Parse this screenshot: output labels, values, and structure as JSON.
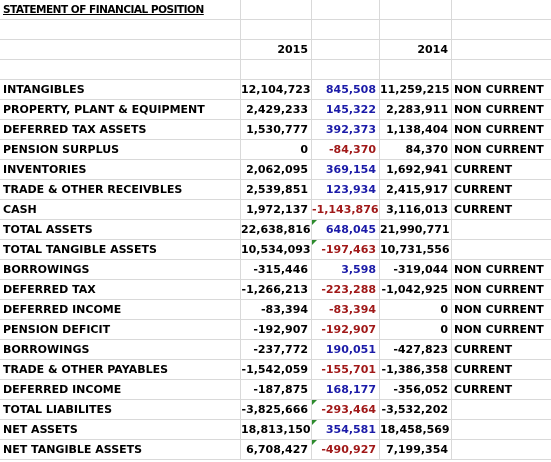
{
  "title": "STATEMENT OF FINANCIAL POSITION",
  "headers": {
    "year_a": "2015",
    "year_b": "2014"
  },
  "rows": [
    {
      "label": "INTANGIBLES",
      "y2015": "12,104,723",
      "diff": "845,508",
      "y2014": "11,259,215",
      "cls": "NON CURRENT",
      "tone": "blue"
    },
    {
      "label": "PROPERTY, PLANT & EQUIPMENT",
      "y2015": "2,429,233",
      "diff": "145,322",
      "y2014": "2,283,911",
      "cls": "NON CURRENT",
      "tone": "blue"
    },
    {
      "label": "DEFERRED TAX ASSETS",
      "y2015": "1,530,777",
      "diff": "392,373",
      "y2014": "1,138,404",
      "cls": "NON CURRENT",
      "tone": "blue"
    },
    {
      "label": "PENSION SURPLUS",
      "y2015": "0",
      "diff": "-84,370",
      "y2014": "84,370",
      "cls": "NON CURRENT",
      "tone": "red"
    },
    {
      "label": "INVENTORIES",
      "y2015": "2,062,095",
      "diff": "369,154",
      "y2014": "1,692,941",
      "cls": "CURRENT",
      "tone": "blue"
    },
    {
      "label": "TRADE & OTHER RECEIVBLES",
      "y2015": "2,539,851",
      "diff": "123,934",
      "y2014": "2,415,917",
      "cls": "CURRENT",
      "tone": "blue"
    },
    {
      "label": "CASH",
      "y2015": "1,972,137",
      "diff": "-1,143,876",
      "y2014": "3,116,013",
      "cls": "CURRENT",
      "tone": "red"
    },
    {
      "label": "TOTAL ASSETS",
      "y2015": "22,638,816",
      "diff": "648,045",
      "y2014": "21,990,771",
      "cls": "",
      "tone": "blue",
      "flag": true
    },
    {
      "label": "TOTAL TANGIBLE ASSETS",
      "y2015": "10,534,093",
      "diff": "-197,463",
      "y2014": "10,731,556",
      "cls": "",
      "tone": "red",
      "flag": true
    },
    {
      "label": "BORROWINGS",
      "y2015": "-315,446",
      "diff": "3,598",
      "y2014": "-319,044",
      "cls": "NON CURRENT",
      "tone": "blue"
    },
    {
      "label": "DEFERRED TAX",
      "y2015": "-1,266,213",
      "diff": "-223,288",
      "y2014": "-1,042,925",
      "cls": "NON CURRENT",
      "tone": "red"
    },
    {
      "label": "DEFERRED INCOME",
      "y2015": "-83,394",
      "diff": "-83,394",
      "y2014": "0",
      "cls": "NON CURRENT",
      "tone": "red"
    },
    {
      "label": "PENSION DEFICIT",
      "y2015": "-192,907",
      "diff": "-192,907",
      "y2014": "0",
      "cls": "NON CURRENT",
      "tone": "red"
    },
    {
      "label": "BORROWINGS",
      "y2015": "-237,772",
      "diff": "190,051",
      "y2014": "-427,823",
      "cls": "CURRENT",
      "tone": "blue"
    },
    {
      "label": "TRADE & OTHER PAYABLES",
      "y2015": "-1,542,059",
      "diff": "-155,701",
      "y2014": "-1,386,358",
      "cls": "CURRENT",
      "tone": "red"
    },
    {
      "label": "DEFERRED INCOME",
      "y2015": "-187,875",
      "diff": "168,177",
      "y2014": "-356,052",
      "cls": "CURRENT",
      "tone": "blue"
    },
    {
      "label": "TOTAL LIABILITES",
      "y2015": "-3,825,666",
      "diff": "-293,464",
      "y2014": "-3,532,202",
      "cls": "",
      "tone": "red",
      "flag": true
    },
    {
      "label": "NET ASSETS",
      "y2015": "18,813,150",
      "diff": "354,581",
      "y2014": "18,458,569",
      "cls": "",
      "tone": "blue",
      "flag": true
    },
    {
      "label": "NET TANGIBLE ASSETS",
      "y2015": "6,708,427",
      "diff": "-490,927",
      "y2014": "7,199,354",
      "cls": "",
      "tone": "red",
      "flag": true
    }
  ],
  "colors": {
    "positive": "#1b1ba8",
    "negative": "#a01818",
    "flag": "#2e8b2e",
    "grid": "#d9d9d9"
  }
}
